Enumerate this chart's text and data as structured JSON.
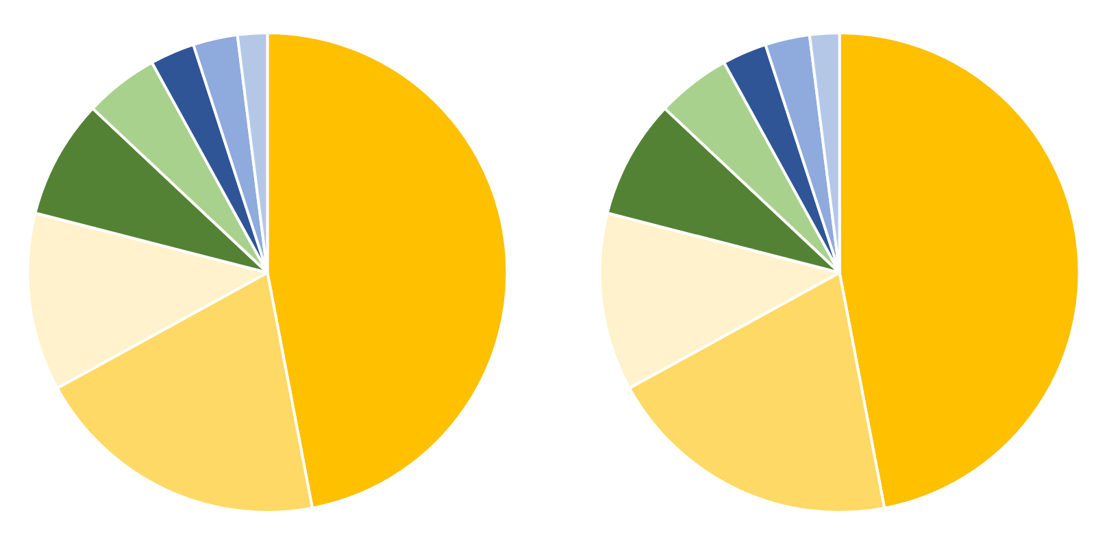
{
  "chart_data": [
    {
      "type": "pie",
      "categories": [
        null,
        null,
        null,
        null,
        null,
        null,
        null,
        null
      ],
      "values": [
        47,
        20,
        12,
        8,
        5,
        3,
        3,
        2
      ],
      "colors": [
        "#ffc000",
        "#ffd966",
        "#fff2cc",
        "#548235",
        "#a9d18e",
        "#2f5597",
        "#8faadc",
        "#b4c7e7"
      ]
    },
    {
      "type": "pie",
      "categories": [
        null,
        null,
        null,
        null,
        null,
        null,
        null,
        null
      ],
      "values": [
        47,
        20,
        12,
        8,
        5,
        3,
        3,
        2
      ],
      "colors": [
        "#ffc000",
        "#ffd966",
        "#fff2cc",
        "#548235",
        "#a9d18e",
        "#2f5597",
        "#8faadc",
        "#b4c7e7"
      ]
    }
  ]
}
